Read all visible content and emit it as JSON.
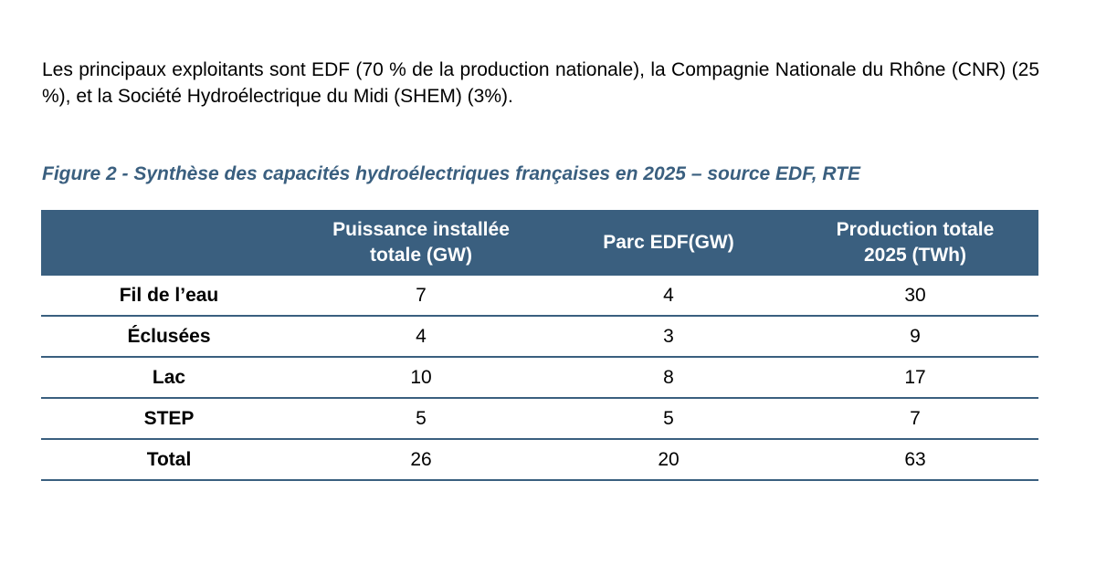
{
  "paragraph": "Les principaux exploitants sont EDF (70 % de la production nationale), la Compagnie Nationale du Rhône (CNR) (25 %), et la Société Hydroélectrique du Midi (SHEM) (3%).",
  "caption": "Figure 2 - Synthèse des capacités hydroélectriques françaises en 2025 – source EDF, RTE",
  "table": {
    "headers": {
      "col0": "",
      "col1_line1": "Puissance installée",
      "col1_line2": "totale (GW)",
      "col2": "Parc EDF(GW)",
      "col3_line1": "Production totale",
      "col3_line2": "2025 (TWh)"
    },
    "rows": [
      {
        "label": "Fil de l’eau",
        "puissance": "7",
        "parc_edf": "4",
        "production": "30"
      },
      {
        "label": "Éclusées",
        "puissance": "4",
        "parc_edf": "3",
        "production": "9"
      },
      {
        "label": "Lac",
        "puissance": "10",
        "parc_edf": "8",
        "production": "17"
      },
      {
        "label": "STEP",
        "puissance": "5",
        "parc_edf": "5",
        "production": "7"
      },
      {
        "label": "Total",
        "puissance": "26",
        "parc_edf": "20",
        "production": "63"
      }
    ]
  },
  "colors": {
    "header_bg": "#3a5f7f",
    "caption_text": "#3a5f7f",
    "row_border": "#3a5f7f"
  }
}
